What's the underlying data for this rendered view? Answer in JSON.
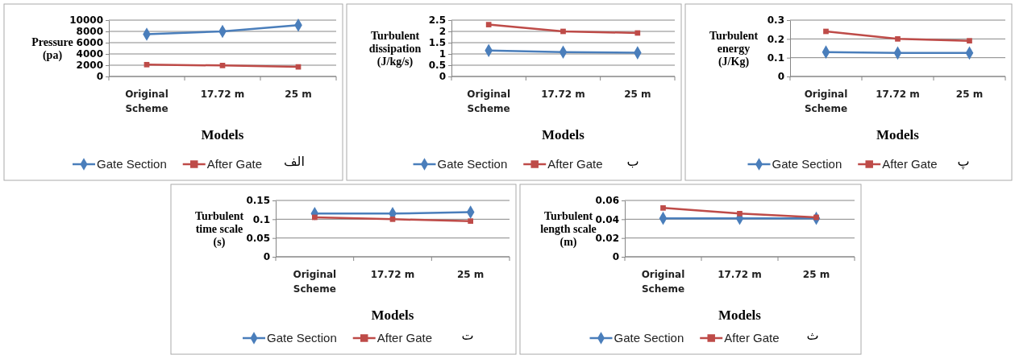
{
  "chart_data": [
    {
      "type": "line",
      "ylabel": "Pressure (pa)",
      "xlabel": "Models",
      "categories": [
        "Original Scheme",
        "17.72 m",
        "25 m"
      ],
      "series": [
        {
          "name": "Gate Section",
          "color": "#4a7ebb",
          "marker": "diamond",
          "values": [
            7500,
            8000,
            9100
          ]
        },
        {
          "name": "After Gate",
          "color": "#be4b48",
          "marker": "square",
          "values": [
            2100,
            1950,
            1700
          ]
        }
      ],
      "ylim": [
        0,
        10000
      ],
      "yticks": [
        0,
        2000,
        4000,
        6000,
        8000,
        10000
      ],
      "grid": "y",
      "legend": "bottom",
      "annotations": [
        "الف"
      ]
    },
    {
      "type": "line",
      "ylabel": "Turbulent dissipation (J/kg/s)",
      "xlabel": "Models",
      "categories": [
        "Original Scheme",
        "17.72 m",
        "25 m"
      ],
      "series": [
        {
          "name": "Gate Section",
          "color": "#4a7ebb",
          "marker": "diamond",
          "values": [
            1.15,
            1.08,
            1.05
          ]
        },
        {
          "name": "After Gate",
          "color": "#be4b48",
          "marker": "square",
          "values": [
            2.3,
            2.0,
            1.93
          ]
        }
      ],
      "ylim": [
        0,
        2.5
      ],
      "yticks": [
        0,
        0.5,
        1,
        1.5,
        2,
        2.5
      ],
      "grid": "y",
      "legend": "bottom",
      "annotations": [
        "ب"
      ]
    },
    {
      "type": "line",
      "ylabel": "Turbulent energy (J/Kg)",
      "xlabel": "Models",
      "categories": [
        "Original Scheme",
        "17.72 m",
        "25 m"
      ],
      "series": [
        {
          "name": "Gate Section",
          "color": "#4a7ebb",
          "marker": "diamond",
          "values": [
            0.13,
            0.125,
            0.125
          ]
        },
        {
          "name": "After Gate",
          "color": "#be4b48",
          "marker": "square",
          "values": [
            0.24,
            0.2,
            0.19
          ]
        }
      ],
      "ylim": [
        0,
        0.3
      ],
      "yticks": [
        0,
        0.1,
        0.2,
        0.3
      ],
      "grid": "y",
      "legend": "bottom",
      "annotations": [
        "پ"
      ]
    },
    {
      "type": "line",
      "ylabel": "Turbulent time scale (s)",
      "xlabel": "Models",
      "categories": [
        "Original Scheme",
        "17.72 m",
        "25 m"
      ],
      "series": [
        {
          "name": "Gate Section",
          "color": "#4a7ebb",
          "marker": "diamond",
          "values": [
            0.115,
            0.115,
            0.119
          ]
        },
        {
          "name": "After Gate",
          "color": "#be4b48",
          "marker": "square",
          "values": [
            0.105,
            0.1,
            0.095
          ]
        }
      ],
      "ylim": [
        0,
        0.15
      ],
      "yticks": [
        0,
        0.05,
        0.1,
        0.15
      ],
      "grid": "y",
      "legend": "bottom",
      "annotations": [
        "ت"
      ]
    },
    {
      "type": "line",
      "ylabel": "Turbulent length scale (m)",
      "xlabel": "Models",
      "categories": [
        "Original Scheme",
        "17.72 m",
        "25 m"
      ],
      "series": [
        {
          "name": "Gate Section",
          "color": "#4a7ebb",
          "marker": "diamond",
          "values": [
            0.041,
            0.041,
            0.041
          ]
        },
        {
          "name": "After Gate",
          "color": "#be4b48",
          "marker": "square",
          "values": [
            0.052,
            0.046,
            0.042
          ]
        }
      ],
      "ylim": [
        0,
        0.06
      ],
      "yticks": [
        0,
        0.02,
        0.04,
        0.06
      ],
      "grid": "y",
      "legend": "bottom",
      "annotations": [
        "ث"
      ]
    }
  ]
}
